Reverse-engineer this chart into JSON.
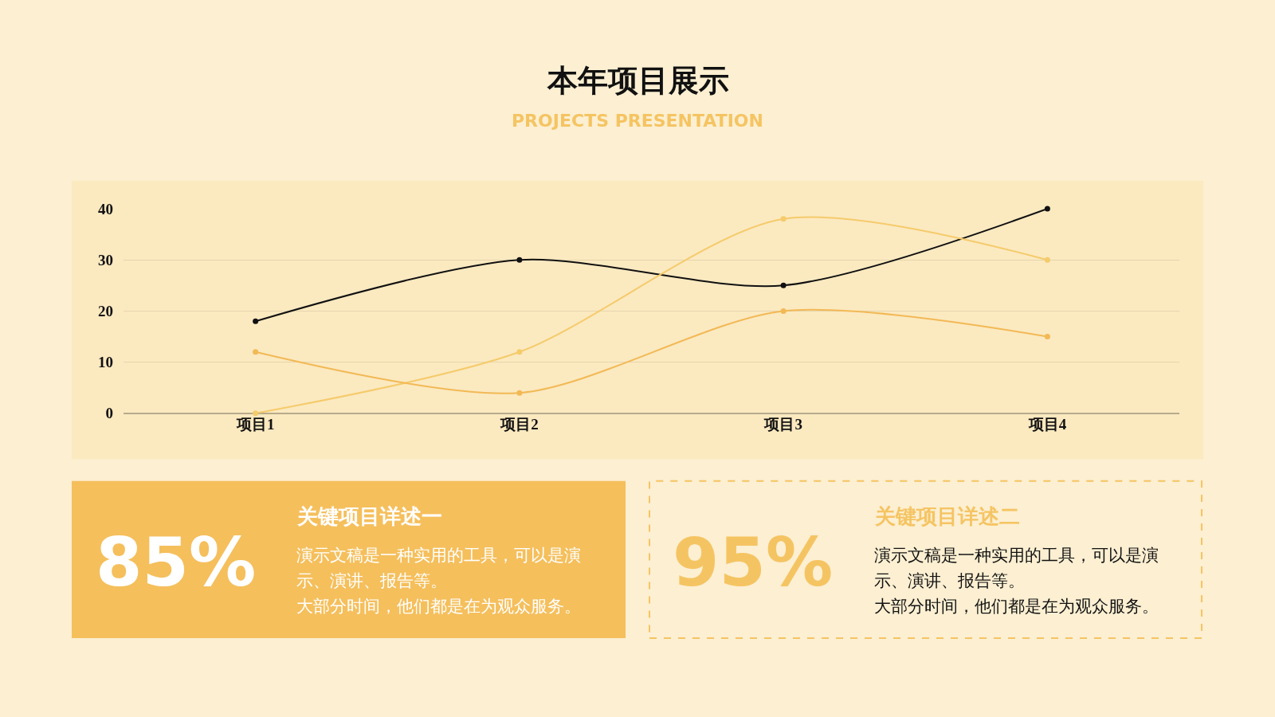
{
  "chart_data": [
    {
      "type": "line",
      "title": "本年项目展示",
      "subtitle": "PROJECTS PRESENTATION",
      "categories": [
        "项目1",
        "项目2",
        "项目3",
        "项目4"
      ],
      "series": [
        {
          "color": "#111111",
          "values": [
            18,
            30,
            25,
            40
          ]
        },
        {
          "color": "#f5cb6b",
          "values": [
            0,
            12,
            38,
            30
          ]
        },
        {
          "color": "#f2b955",
          "values": [
            12,
            4,
            20,
            15
          ]
        }
      ],
      "ylim": [
        0,
        40
      ],
      "yticks": [
        0,
        10,
        20,
        30,
        40
      ],
      "grid": "y",
      "marker": "circle",
      "line_style": "solid"
    },
    {
      "type": "other",
      "title": "关键项目详述一",
      "annotations": [
        "85%",
        "演示文稿是一种实用的工具，可以是演",
        "示、演讲、报告等。",
        "大部分时间，他们都是在为观众服务。"
      ]
    },
    {
      "type": "other",
      "title": "关键项目详述二",
      "annotations": [
        "95%",
        "演示文稿是一种实用的工具，可以是演",
        "示、演讲、报告等。",
        "大部分时间，他们都是在为观众服务。"
      ]
    }
  ]
}
